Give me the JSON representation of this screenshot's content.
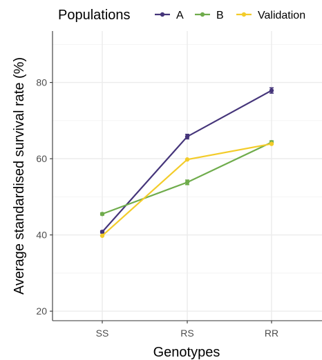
{
  "chart_data": {
    "type": "line",
    "title": "",
    "xlabel": "Genotypes",
    "ylabel": "Average standardised survival rate (%)",
    "categories": [
      "SS",
      "RS",
      "RR"
    ],
    "ylim": [
      17.5,
      93.5
    ],
    "yticks": [
      20,
      40,
      60,
      80
    ],
    "grid": true,
    "legend": {
      "title": "Populations",
      "placement": "top"
    },
    "series": [
      {
        "name": "A",
        "color": "#45357a",
        "values": [
          40.8,
          65.8,
          77.9
        ],
        "errors": [
          0.3,
          0.6,
          0.7
        ]
      },
      {
        "name": "B",
        "color": "#6fac4c",
        "values": [
          45.5,
          53.8,
          64.3
        ],
        "errors": [
          0.3,
          0.6,
          0.4
        ]
      },
      {
        "name": "Validation",
        "color": "#f3cc2a",
        "values": [
          39.8,
          59.8,
          63.9
        ],
        "errors": [
          0,
          0,
          0
        ]
      }
    ]
  }
}
